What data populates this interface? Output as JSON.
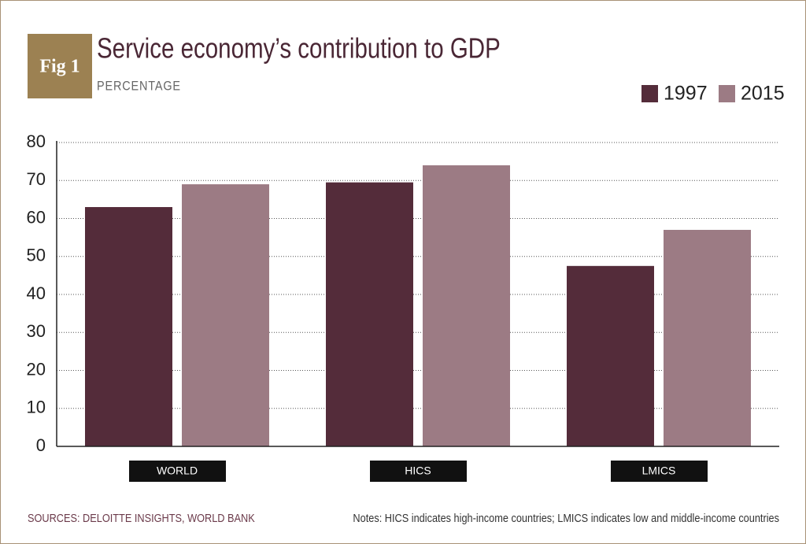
{
  "badge": "Fig 1",
  "chart_data": {
    "type": "bar",
    "title": "Service economy’s contribution to GDP",
    "subtitle": "PERCENTAGE",
    "categories": [
      "WORLD",
      "HICS",
      "LMICS"
    ],
    "series": [
      {
        "name": "1997",
        "color": "#542c3a",
        "values": [
          63,
          69.5,
          47.5
        ]
      },
      {
        "name": "2015",
        "color": "#9c7b84",
        "values": [
          69,
          74,
          57
        ]
      }
    ],
    "ylim": [
      0,
      80
    ],
    "yticks": [
      0,
      10,
      20,
      30,
      40,
      50,
      60,
      70,
      80
    ],
    "grid": true,
    "legend": "top-right"
  },
  "footer": {
    "sources": "SOURCES: DELOITTE INSIGHTS, WORLD BANK",
    "notes": "Notes: HICS indicates high-income countries; LMICS indicates low and middle-income countries"
  }
}
